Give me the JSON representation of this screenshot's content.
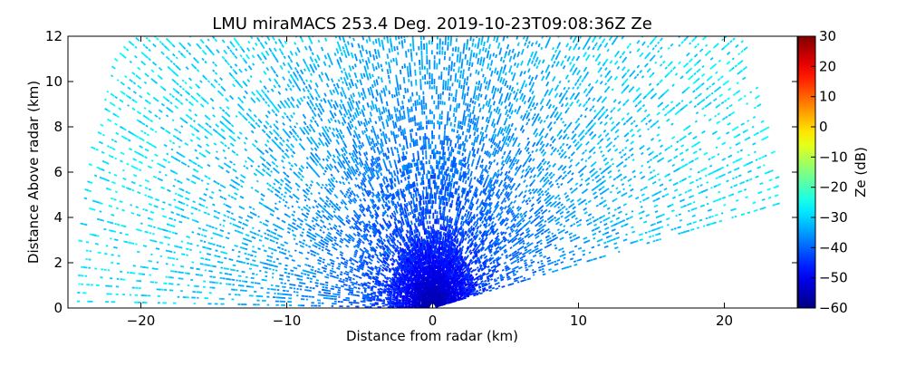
{
  "chart_data": {
    "type": "heatmap",
    "subtype": "radar-rhi",
    "title": "LMU miraMACS 253.4 Deg. 2019-10-23T09:08:36Z  Ze",
    "xlabel": "Distance from radar (km)",
    "ylabel": "Distance Above radar  (km)",
    "xlim": [
      -25,
      25
    ],
    "ylim": [
      0,
      12
    ],
    "xticks": [
      -20,
      -10,
      0,
      10,
      20
    ],
    "yticks": [
      0,
      2,
      4,
      6,
      8,
      10,
      12
    ],
    "colorbar": {
      "label": "Ze (dB)",
      "range": [
        -60,
        30
      ],
      "ticks": [
        30,
        20,
        10,
        0,
        -10,
        -20,
        -30,
        -40,
        -50,
        -60
      ],
      "colormap": "jet"
    },
    "scan": {
      "max_range_km": 24.2,
      "min_elevation_deg_right": 11,
      "elevation_range_deg": [
        11,
        180
      ]
    },
    "reflectivity_profile": [
      {
        "range_km": 0.5,
        "ze_db": -55
      },
      {
        "range_km": 2,
        "ze_db": -48
      },
      {
        "range_km": 4,
        "ze_db": -42
      },
      {
        "range_km": 7,
        "ze_db": -38
      },
      {
        "range_km": 10,
        "ze_db": -35
      },
      {
        "range_km": 15,
        "ze_db": -31
      },
      {
        "range_km": 20,
        "ze_db": -29
      },
      {
        "range_km": 24,
        "ze_db": -28
      }
    ]
  }
}
